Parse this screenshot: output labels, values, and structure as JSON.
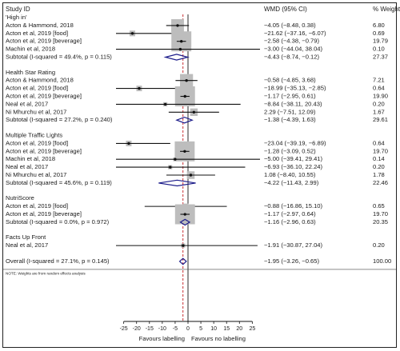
{
  "chart_data": {
    "type": "forest",
    "header": {
      "study_col": "Study ID",
      "effect_col": "WMD (95% CI)",
      "weight_col": "% Weight"
    },
    "groups": [
      {
        "label": "'High in'",
        "studies": [
          {
            "name": "Acton & Hammond, 2018",
            "est": -4.05,
            "lo": -8.48,
            "hi": 0.38,
            "ci_text": "−4.05 (−8.48, 0.38)",
            "weight": 6.8,
            "weight_text": "6.80"
          },
          {
            "name": "Acton et al, 2019 [food]",
            "est": -21.62,
            "lo": -37.16,
            "hi": -6.07,
            "ci_text": "−21.62 (−37.16, −6.07)",
            "weight": 0.69,
            "weight_text": "0.69"
          },
          {
            "name": "Acton et al, 2019 [beverage]",
            "est": -2.58,
            "lo": -4.38,
            "hi": -0.79,
            "ci_text": "−2.58 (−4.38, −0.79)",
            "weight": 19.79,
            "weight_text": "19.79"
          },
          {
            "name": "Machin et al, 2018",
            "est": -3.0,
            "lo": -44.04,
            "hi": 38.04,
            "ci_text": "−3.00 (−44.04, 38.04)",
            "weight": 0.1,
            "weight_text": "0.10"
          }
        ],
        "subtotal": {
          "label": "Subtotal  (I-squared = 49.4%, p = 0.115)",
          "est": -4.43,
          "lo": -8.74,
          "hi": -0.12,
          "ci_text": "−4.43 (−8.74, −0.12)",
          "weight_text": "27.37"
        }
      },
      {
        "label": "Health Star Rating",
        "studies": [
          {
            "name": "Acton & Hammond, 2018",
            "est": -0.58,
            "lo": -4.85,
            "hi": 3.68,
            "ci_text": "−0.58 (−4.85, 3.68)",
            "weight": 7.21,
            "weight_text": "7.21"
          },
          {
            "name": "Acton et al, 2019 [food]",
            "est": -18.99,
            "lo": -35.13,
            "hi": -2.85,
            "ci_text": "−18.99 (−35.13, −2.85)",
            "weight": 0.64,
            "weight_text": "0.64"
          },
          {
            "name": "Acton et al, 2019 [beverage]",
            "est": -1.17,
            "lo": -2.95,
            "hi": 0.61,
            "ci_text": "−1.17 (−2.95, 0.61)",
            "weight": 19.9,
            "weight_text": "19.90"
          },
          {
            "name": "Neal et al, 2017",
            "est": -8.84,
            "lo": -38.11,
            "hi": 20.43,
            "ci_text": "−8.84 (−38.11, 20.43)",
            "weight": 0.2,
            "weight_text": "0.20"
          },
          {
            "name": "Ni Mhurchu et al, 2017",
            "est": 2.29,
            "lo": -7.51,
            "hi": 12.09,
            "ci_text": "2.29 (−7.51, 12.09)",
            "weight": 1.67,
            "weight_text": "1.67"
          }
        ],
        "subtotal": {
          "label": "Subtotal  (I-squared = 27.2%, p = 0.240)",
          "est": -1.38,
          "lo": -4.39,
          "hi": 1.63,
          "ci_text": "−1.38 (−4.39, 1.63)",
          "weight_text": "29.61"
        }
      },
      {
        "label": "Multiple Traffic Lights",
        "studies": [
          {
            "name": "Acton et al, 2019 [food]",
            "est": -23.04,
            "lo": -39.19,
            "hi": -6.89,
            "ci_text": "−23.04 (−39.19, −6.89)",
            "weight": 0.64,
            "weight_text": "0.64"
          },
          {
            "name": "Acton et al, 2019 [beverage]",
            "est": -1.28,
            "lo": -3.09,
            "hi": 0.52,
            "ci_text": "−1.28 (−3.09, 0.52)",
            "weight": 19.7,
            "weight_text": "19.70"
          },
          {
            "name": "Machin et al, 2018",
            "est": -5.0,
            "lo": -39.41,
            "hi": 29.41,
            "ci_text": "−5.00 (−39.41, 29.41)",
            "weight": 0.14,
            "weight_text": "0.14"
          },
          {
            "name": "Neal et al, 2017",
            "est": -6.93,
            "lo": -36.1,
            "hi": 22.24,
            "ci_text": "−6.93 (−36.10, 22.24)",
            "weight": 0.2,
            "weight_text": "0.20"
          },
          {
            "name": "Ni Mhurchu et al, 2017",
            "est": 1.08,
            "lo": -8.4,
            "hi": 10.55,
            "ci_text": "1.08 (−8.40, 10.55)",
            "weight": 1.78,
            "weight_text": "1.78"
          }
        ],
        "subtotal": {
          "label": "Subtotal  (I-squared = 45.6%, p = 0.119)",
          "est": -4.22,
          "lo": -11.43,
          "hi": 2.99,
          "ci_text": "−4.22 (−11.43, 2.99)",
          "weight_text": "22.46"
        }
      },
      {
        "label": "NutriScore",
        "studies": [
          {
            "name": "Acton et al, 2019 [food]",
            "est": -0.88,
            "lo": -16.86,
            "hi": 15.1,
            "ci_text": "−0.88 (−16.86, 15.10)",
            "weight": 0.65,
            "weight_text": "0.65"
          },
          {
            "name": "Acton et al, 2019 [beverage]",
            "est": -1.17,
            "lo": -2.97,
            "hi": 0.64,
            "ci_text": "−1.17 (−2.97, 0.64)",
            "weight": 19.7,
            "weight_text": "19.70"
          }
        ],
        "subtotal": {
          "label": "Subtotal  (I-squared = 0.0%, p = 0.972)",
          "est": -1.16,
          "lo": -2.96,
          "hi": 0.63,
          "ci_text": "−1.16 (−2.96, 0.63)",
          "weight_text": "20.35"
        }
      },
      {
        "label": "Facts Up Front",
        "studies": [
          {
            "name": "Neal et al, 2017",
            "est": -1.91,
            "lo": -30.87,
            "hi": 27.04,
            "ci_text": "−1.91 (−30.87, 27.04)",
            "weight": 0.2,
            "weight_text": "0.20"
          }
        ],
        "subtotal": null
      }
    ],
    "overall": {
      "label": "Overall  (I-squared = 27.1%, p = 0.145)",
      "est": -1.95,
      "lo": -3.26,
      "hi": -0.65,
      "ci_text": "−1.95 (−3.26, −0.65)",
      "weight_text": "100.00"
    },
    "note": "NOTE: Weights are from random effects analysis",
    "x_axis": {
      "ticks": [
        -25,
        -20,
        -15,
        -10,
        -5,
        0,
        5,
        10,
        15,
        20,
        25
      ],
      "tick_labels": [
        "-25",
        "-20",
        "-15",
        "-10",
        "-5",
        "0",
        "5",
        "10",
        "15",
        "20",
        "25"
      ],
      "display_range": [
        -28,
        28
      ],
      "null_value": 0,
      "left_label": "Favours labelling",
      "right_label": "Favours no labelling"
    }
  }
}
